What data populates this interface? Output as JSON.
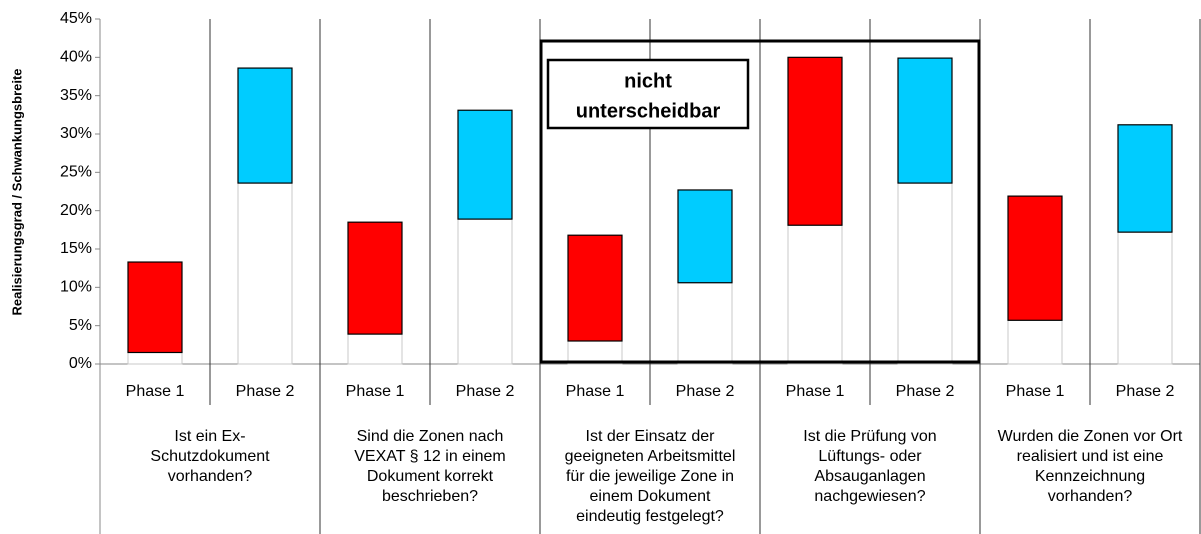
{
  "chart_data": {
    "type": "range-bar",
    "ylabel": "Realisierungsgrad / Schwankungsbreite",
    "categories": [
      "Phase 1",
      "Phase 2",
      "Phase 1",
      "Phase 2",
      "Phase 1",
      "Phase 2",
      "Phase 1",
      "Phase 2",
      "Phase 1",
      "Phase 2"
    ],
    "groups": [
      [
        "Ist ein Ex-",
        "Schutzdokument",
        "vorhanden?"
      ],
      [
        "Sind die Zonen nach",
        "VEXAT § 12 in einem",
        "Dokument korrekt",
        "beschrieben?"
      ],
      [
        "Ist der Einsatz der",
        "geeigneten Arbeitsmittel",
        "für die jeweilige Zone in",
        "einem Dokument",
        "eindeutig festgelegt?"
      ],
      [
        "Ist die Prüfung von",
        "Lüftungs- oder",
        "Absauganlagen",
        "nachgewiesen?"
      ],
      [
        "Wurden die Zonen vor Ort",
        "realisiert und ist eine",
        "Kennzeichnung",
        "vorhanden?"
      ]
    ],
    "lows": [
      1.5,
      23.6,
      3.9,
      18.9,
      3.0,
      10.6,
      18.1,
      23.6,
      5.7,
      17.2
    ],
    "highs": [
      13.3,
      38.6,
      18.5,
      33.1,
      16.8,
      22.7,
      40.0,
      39.9,
      21.9,
      31.2
    ],
    "phase_colors": [
      "#ff0000",
      "#00ccff"
    ],
    "annotation": [
      "nicht",
      "unterscheidbar"
    ],
    "ylim": [
      0,
      45
    ],
    "yticks": [
      {
        "value": 0,
        "label": "0%"
      },
      {
        "value": 5,
        "label": "5%"
      },
      {
        "value": 10,
        "label": "10%"
      },
      {
        "value": 15,
        "label": "15%"
      },
      {
        "value": 20,
        "label": "20%"
      },
      {
        "value": 25,
        "label": "25%"
      },
      {
        "value": 30,
        "label": "30%"
      },
      {
        "value": 35,
        "label": "35%"
      },
      {
        "value": 40,
        "label": "40%"
      },
      {
        "value": 45,
        "label": "45%"
      }
    ]
  }
}
